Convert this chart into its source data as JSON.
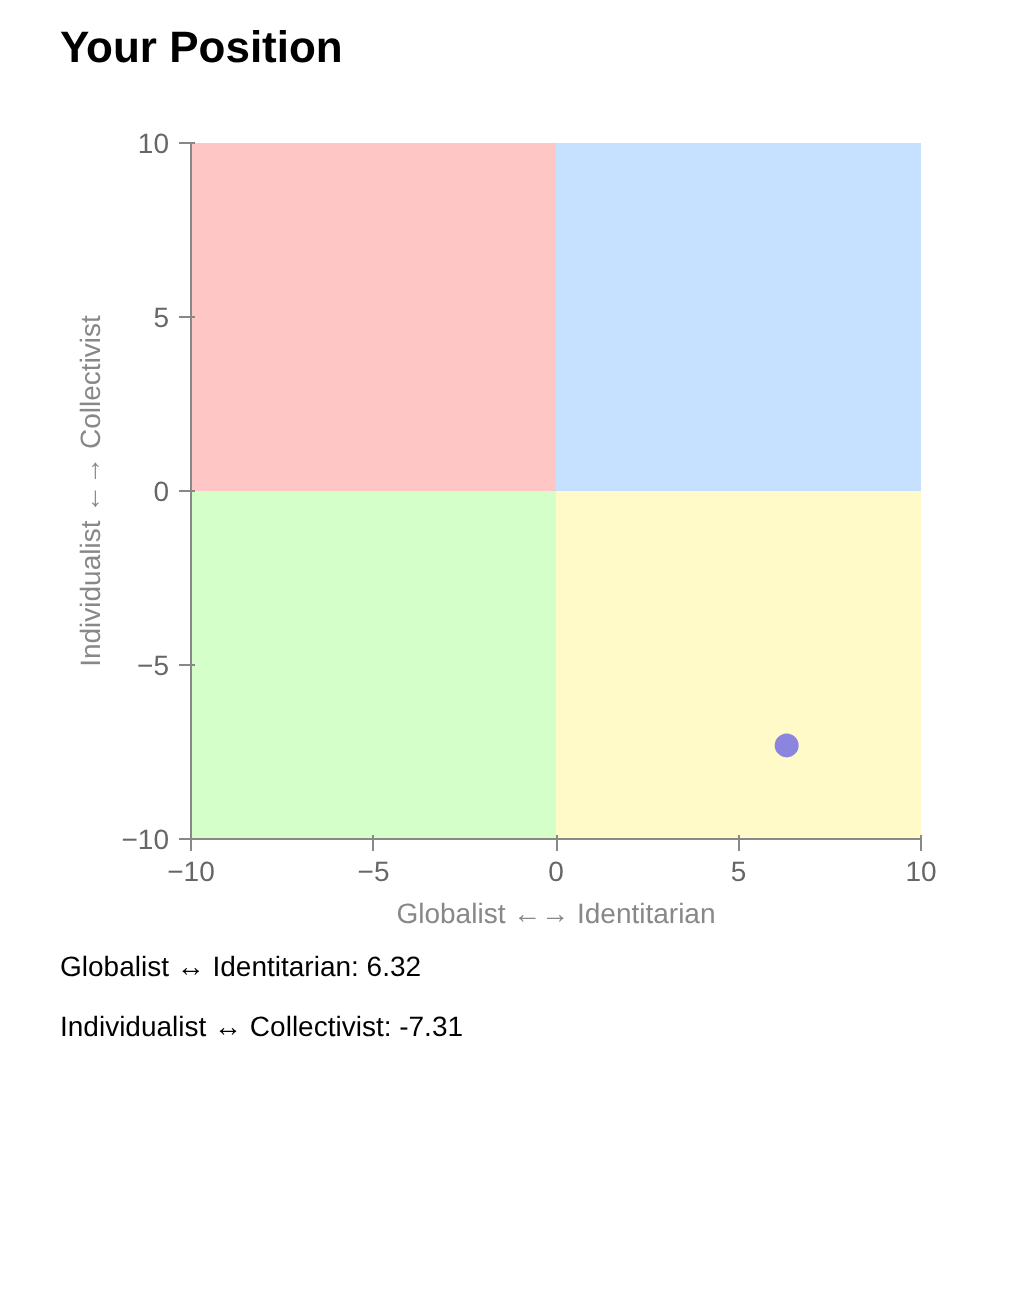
{
  "chart_data": {
    "type": "scatter",
    "title": "Your Position",
    "xlabel": "Globalist ←→ Identitarian",
    "ylabel": "Individualist ←→ Collectivist",
    "xlim": [
      -10,
      10
    ],
    "ylim": [
      -10,
      10
    ],
    "xticks": [
      -10,
      -5,
      0,
      5,
      10
    ],
    "yticks": [
      -10,
      -5,
      0,
      5,
      10
    ],
    "series": [
      {
        "type": "area",
        "color": "#ffc6c6",
        "x": [
          -10,
          0
        ],
        "values": [
          10,
          10
        ]
      },
      {
        "type": "area",
        "color": "#c6e0ff",
        "x": [
          0,
          10
        ],
        "values": [
          10,
          10
        ]
      },
      {
        "type": "area",
        "color": "#d5ffc9",
        "x": [
          -10,
          0
        ],
        "values": [
          -10,
          -10
        ]
      },
      {
        "type": "area",
        "color": "#fffac8",
        "x": [
          0,
          10
        ],
        "values": [
          -10,
          -10
        ]
      },
      {
        "color": "#8b85e0",
        "marker": "circle",
        "x": [
          6.32
        ],
        "values": [
          -7.31
        ]
      }
    ],
    "annotations": [
      "Globalist ↔ Identitarian: 6.32",
      "Individualist ↔ Collectivist: -7.31"
    ]
  }
}
